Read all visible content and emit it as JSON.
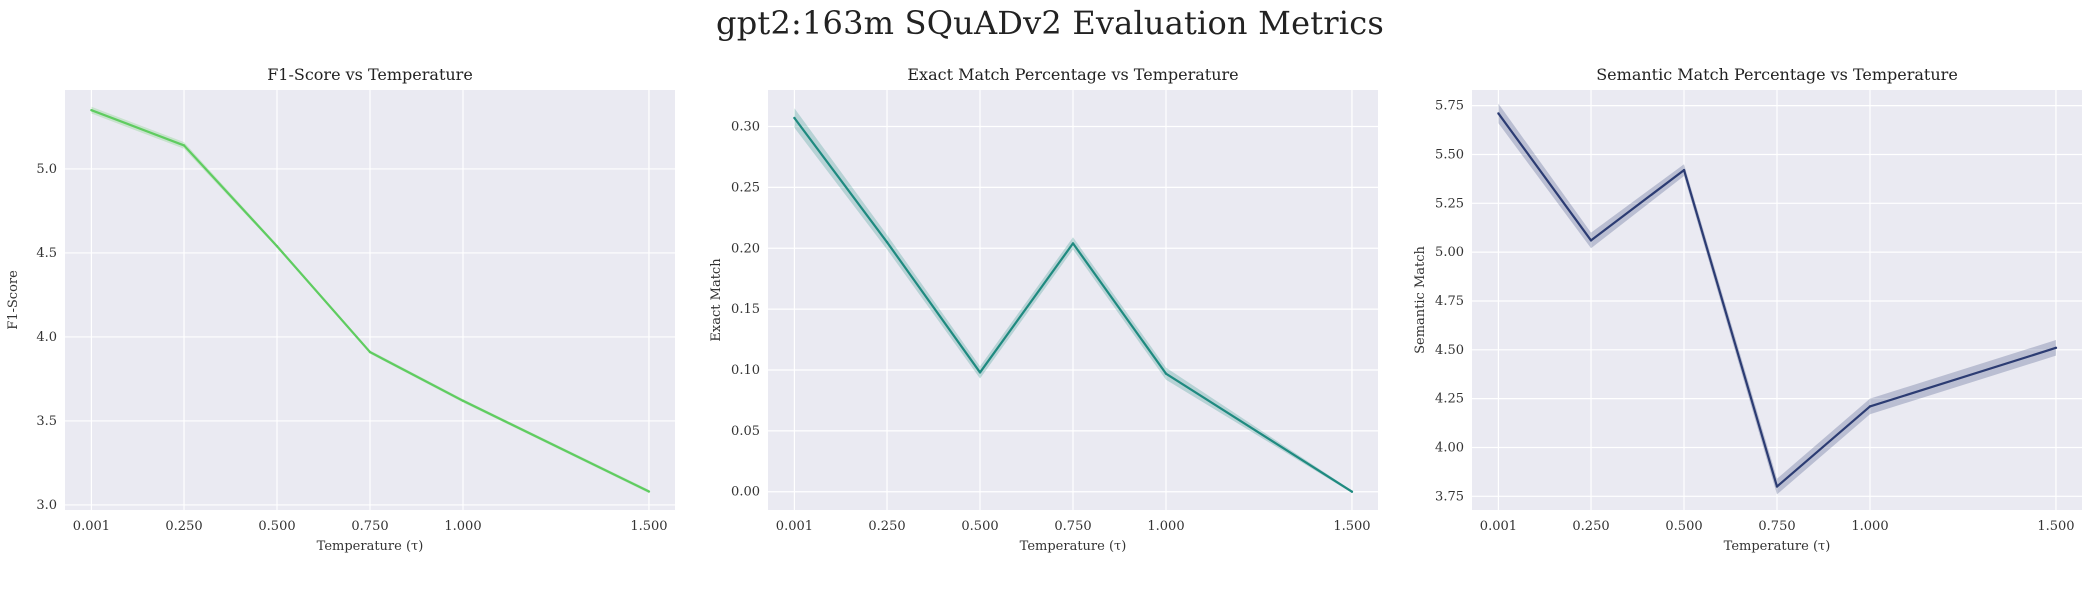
{
  "figure": {
    "title": "gpt2:163m SQuADv2 Evaluation Metrics"
  },
  "chart_data": [
    {
      "type": "line",
      "title": "F1-Score vs Temperature",
      "xlabel": "Temperature (τ)",
      "ylabel": "F1-Score",
      "color": "#5fcc60",
      "x": [
        0.001,
        0.25,
        0.5,
        0.75,
        1.0,
        1.5
      ],
      "x_tick_labels": [
        "0.001",
        "0.250",
        "0.500",
        "0.750",
        "1.000",
        "1.500"
      ],
      "values": [
        5.35,
        5.14,
        4.54,
        3.91,
        3.62,
        3.08
      ],
      "band_halfwidth": [
        0.02,
        0.02,
        0.01,
        0.01,
        0.01,
        0.01
      ],
      "xlim": [
        -0.07,
        1.57
      ],
      "ylim": [
        2.97,
        5.47
      ],
      "y_ticks": [
        3.0,
        3.5,
        4.0,
        4.5,
        5.0
      ],
      "y_tick_labels": [
        "3.0",
        "3.5",
        "4.0",
        "4.5",
        "5.0"
      ],
      "grid": true,
      "legend": "none"
    },
    {
      "type": "line",
      "title": "Exact Match Percentage vs Temperature",
      "xlabel": "Temperature (τ)",
      "ylabel": "Exact Match",
      "color": "#1f8a80",
      "x": [
        0.001,
        0.25,
        0.5,
        0.75,
        1.0,
        1.5
      ],
      "x_tick_labels": [
        "0.001",
        "0.250",
        "0.500",
        "0.750",
        "1.000",
        "1.500"
      ],
      "values": [
        0.307,
        0.205,
        0.098,
        0.204,
        0.097,
        0.0
      ],
      "band_halfwidth": [
        0.008,
        0.006,
        0.005,
        0.005,
        0.005,
        0.001
      ],
      "xlim": [
        -0.07,
        1.57
      ],
      "ylim": [
        -0.015,
        0.33
      ],
      "y_ticks": [
        0.0,
        0.05,
        0.1,
        0.15,
        0.2,
        0.25,
        0.3
      ],
      "y_tick_labels": [
        "0.00",
        "0.05",
        "0.10",
        "0.15",
        "0.20",
        "0.25",
        "0.30"
      ],
      "grid": true,
      "legend": "none"
    },
    {
      "type": "line",
      "title": "Semantic Match Percentage vs Temperature",
      "xlabel": "Temperature (τ)",
      "ylabel": "Semantic Match",
      "color": "#2c3c73",
      "x": [
        0.001,
        0.25,
        0.5,
        0.75,
        1.0,
        1.5
      ],
      "x_tick_labels": [
        "0.001",
        "0.250",
        "0.500",
        "0.750",
        "1.000",
        "1.500"
      ],
      "values": [
        5.71,
        5.06,
        5.42,
        3.8,
        4.21,
        4.51
      ],
      "band_halfwidth": [
        0.05,
        0.04,
        0.03,
        0.04,
        0.04,
        0.04
      ],
      "xlim": [
        -0.07,
        1.57
      ],
      "ylim": [
        3.68,
        5.83
      ],
      "y_ticks": [
        3.75,
        4.0,
        4.25,
        4.5,
        4.75,
        5.0,
        5.25,
        5.5,
        5.75
      ],
      "y_tick_labels": [
        "3.75",
        "4.00",
        "4.25",
        "4.50",
        "4.75",
        "5.00",
        "5.25",
        "5.50",
        "5.75"
      ],
      "grid": true,
      "legend": "none"
    }
  ]
}
